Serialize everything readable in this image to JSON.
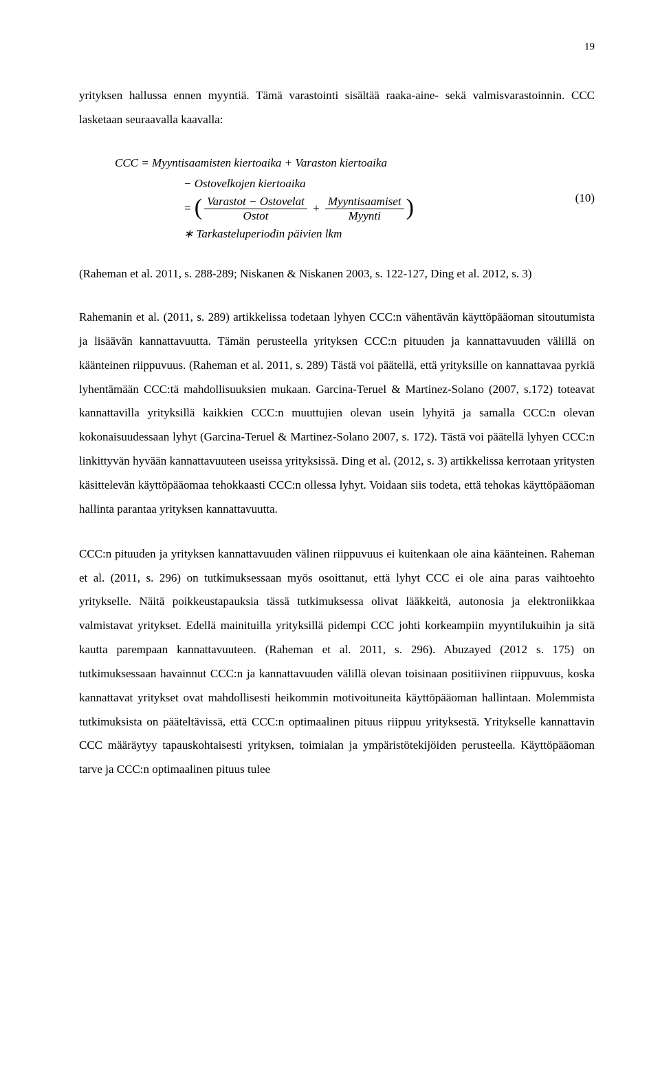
{
  "page_number": "19",
  "para1": "yrityksen hallussa ennen myyntiä. Tämä varastointi sisältää raaka-aine- sekä valmisvarastoinnin. CCC lasketaan seuraavalla kaavalla:",
  "formula": {
    "line1": "CCC = Myyntisaamisten kiertoaika + Varaston kiertoaika",
    "line2_lead": "− Ostovelkojen kiertoaika",
    "line3_eq": "= ",
    "frac1_num": "Varastot − Ostovelat",
    "frac1_den": "Ostot",
    "plus": " + ",
    "frac2_num": "Myyntisaamiset",
    "frac2_den": "Myynti",
    "line4": "∗ Tarkasteluperiodin päivien lkm",
    "number": "(10)"
  },
  "ref1": "(Raheman et al. 2011, s. 288-289; Niskanen & Niskanen 2003, s. 122-127, Ding et al. 2012, s. 3)",
  "para2": "Rahemanin et al. (2011, s. 289) artikkelissa todetaan lyhyen CCC:n vähentävän käyttöpääoman sitoutumista ja lisäävän kannattavuutta. Tämän perusteella yrityksen CCC:n pituuden ja kannattavuuden välillä on käänteinen riippuvuus. (Raheman et al. 2011, s. 289) Tästä voi päätellä, että yrityksille on kannattavaa pyrkiä lyhentämään CCC:tä mahdollisuuksien mukaan. Garcina-Teruel & Martinez-Solano (2007, s.172) toteavat kannattavilla yrityksillä kaikkien CCC:n muuttujien olevan usein lyhyitä ja samalla CCC:n olevan kokonaisuudessaan lyhyt (Garcina-Teruel & Martinez-Solano 2007, s. 172). Tästä voi päätellä lyhyen CCC:n linkittyvän hyvään kannattavuuteen useissa yrityksissä. Ding et al. (2012, s. 3) artikkelissa kerrotaan yritysten käsittelevän käyttöpääomaa tehokkaasti CCC:n ollessa lyhyt. Voidaan siis todeta, että tehokas käyttöpääoman hallinta parantaa yrityksen kannattavuutta.",
  "para3": "CCC:n pituuden ja yrityksen kannattavuuden välinen riippuvuus ei kuitenkaan ole aina käänteinen. Raheman et al. (2011, s. 296) on tutkimuksessaan myös osoittanut, että lyhyt CCC ei ole aina paras vaihtoehto yritykselle. Näitä poikkeustapauksia tässä tutkimuksessa olivat lääkkeitä, autonosia ja elektroniikkaa valmistavat yritykset. Edellä mainituilla yrityksillä pidempi CCC johti korkeampiin myyntilukuihin ja sitä kautta parempaan kannattavuuteen. (Raheman et al. 2011, s. 296). Abuzayed (2012 s. 175) on tutkimuksessaan havainnut CCC:n ja kannattavuuden välillä olevan toisinaan positiivinen riippuvuus, koska kannattavat yritykset ovat mahdollisesti heikommin motivoituneita käyttöpääoman hallintaan. Molemmista tutkimuksista on pääteltävissä, että CCC:n optimaalinen pituus riippuu yrityksestä. Yritykselle kannattavin CCC määräytyy tapauskohtaisesti yrityksen, toimialan ja ympäristötekijöiden perusteella. Käyttöpääoman tarve ja CCC:n optimaalinen pituus tulee"
}
